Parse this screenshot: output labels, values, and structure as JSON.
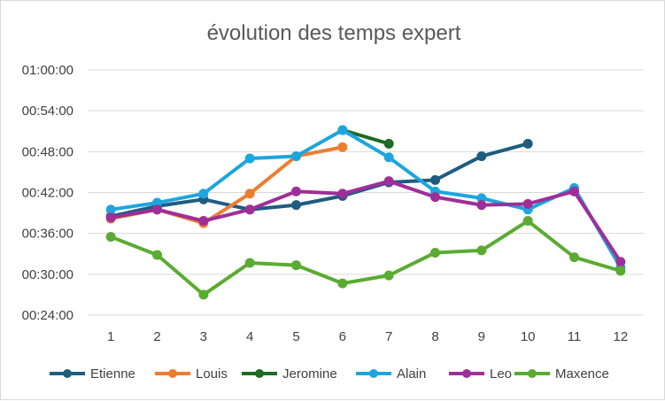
{
  "chart_data": {
    "type": "line",
    "title": "évolution des temps expert",
    "xlabel": "",
    "ylabel": "",
    "categories": [
      "1",
      "2",
      "3",
      "4",
      "5",
      "6",
      "7",
      "8",
      "9",
      "10",
      "11",
      "12"
    ],
    "y_unit": "seconds",
    "y_ticks": [
      "00:24:00",
      "00:30:00",
      "00:36:00",
      "00:42:00",
      "00:48:00",
      "00:54:00",
      "01:00:00"
    ],
    "ylim": [
      1440,
      3600
    ],
    "y_tick_step": 360,
    "grid": true,
    "legend_position": "bottom",
    "series": [
      {
        "name": "Etienne",
        "color": "#1f5c80",
        "values": [
          2310,
          2400,
          2460,
          2370,
          2410,
          2490,
          2610,
          2630,
          2840,
          2950,
          null,
          null
        ]
      },
      {
        "name": "Louis",
        "color": "#ed7d31",
        "values": [
          2290,
          2370,
          2250,
          2510,
          2840,
          2920,
          null,
          null,
          null,
          null,
          null,
          null
        ]
      },
      {
        "name": "Jeromine",
        "color": "#1e6b24",
        "values": [
          null,
          null,
          null,
          null,
          null,
          3070,
          2950,
          null,
          null,
          null,
          null,
          null
        ]
      },
      {
        "name": "Alain",
        "color": "#1ea5dd",
        "values": [
          2370,
          2430,
          2510,
          2820,
          2840,
          3070,
          2830,
          2530,
          2470,
          2370,
          2560,
          1860
        ]
      },
      {
        "name": "Leo",
        "color": "#9e2f98",
        "values": [
          2300,
          2370,
          2270,
          2370,
          2530,
          2510,
          2620,
          2480,
          2410,
          2420,
          2530,
          1910
        ]
      },
      {
        "name": "Maxence",
        "color": "#5aab32",
        "values": [
          2130,
          1970,
          1620,
          1900,
          1880,
          1720,
          1790,
          1990,
          2010,
          2270,
          1950,
          1830
        ]
      }
    ]
  }
}
